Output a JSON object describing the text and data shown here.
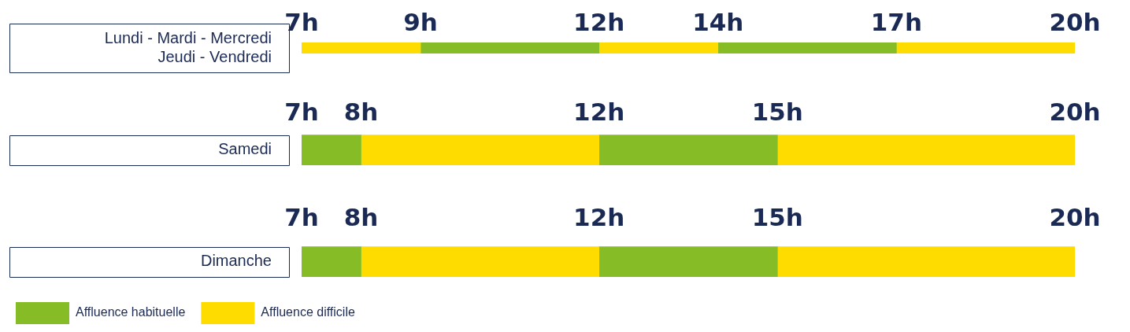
{
  "chart_data": [
    {
      "type": "bar",
      "orientation": "horizontal",
      "categories": [
        "Lundi - Mardi - Mercredi\nJeudi - Vendredi"
      ],
      "series": [
        {
          "color": "#ffdc00",
          "base": [
            7
          ],
          "values": [
            2
          ]
        },
        {
          "color": "#86bc25",
          "base": [
            9
          ],
          "values": [
            3
          ]
        },
        {
          "color": "#ffdc00",
          "base": [
            12
          ],
          "values": [
            2
          ]
        },
        {
          "color": "#86bc25",
          "base": [
            14
          ],
          "values": [
            3
          ]
        },
        {
          "color": "#ffdc00",
          "base": [
            17
          ],
          "values": [
            3
          ]
        }
      ],
      "xlim": [
        7,
        20
      ],
      "xticks": [
        {
          "value": 7,
          "label": "7h"
        },
        {
          "value": 9,
          "label": "9h"
        },
        {
          "value": 12,
          "label": "12h"
        },
        {
          "value": 14,
          "label": "14h"
        },
        {
          "value": 17,
          "label": "17h"
        },
        {
          "value": 20,
          "label": "20h"
        }
      ]
    },
    {
      "type": "bar",
      "orientation": "horizontal",
      "categories": [
        "Samedi"
      ],
      "series": [
        {
          "color": "#86bc25",
          "base": [
            7
          ],
          "values": [
            1
          ]
        },
        {
          "color": "#ffdc00",
          "base": [
            8
          ],
          "values": [
            4
          ]
        },
        {
          "color": "#86bc25",
          "base": [
            12
          ],
          "values": [
            3
          ]
        },
        {
          "color": "#ffdc00",
          "base": [
            15
          ],
          "values": [
            5
          ]
        }
      ],
      "xlim": [
        7,
        20
      ],
      "xticks": [
        {
          "value": 7,
          "label": "7h"
        },
        {
          "value": 8,
          "label": "8h"
        },
        {
          "value": 12,
          "label": "12h"
        },
        {
          "value": 15,
          "label": "15h"
        },
        {
          "value": 20,
          "label": "20h"
        }
      ]
    },
    {
      "type": "bar",
      "orientation": "horizontal",
      "categories": [
        "Dimanche"
      ],
      "series": [
        {
          "name": "Affluence habituelle",
          "color": "#86bc25",
          "base": [
            7
          ],
          "values": [
            1
          ]
        },
        {
          "name": "Affluence difficile",
          "color": "#ffdc00",
          "base": [
            8
          ],
          "values": [
            4
          ]
        },
        {
          "color": "#86bc25",
          "base": [
            12
          ],
          "values": [
            3
          ]
        },
        {
          "color": "#ffdc00",
          "base": [
            15
          ],
          "values": [
            5
          ]
        }
      ],
      "xlim": [
        7,
        20
      ],
      "xticks": [
        {
          "value": 7,
          "label": "7h"
        },
        {
          "value": 8,
          "label": "8h"
        },
        {
          "value": 12,
          "label": "12h"
        },
        {
          "value": 15,
          "label": "15h"
        },
        {
          "value": 20,
          "label": "20h"
        }
      ],
      "legend": "bottom left"
    }
  ]
}
